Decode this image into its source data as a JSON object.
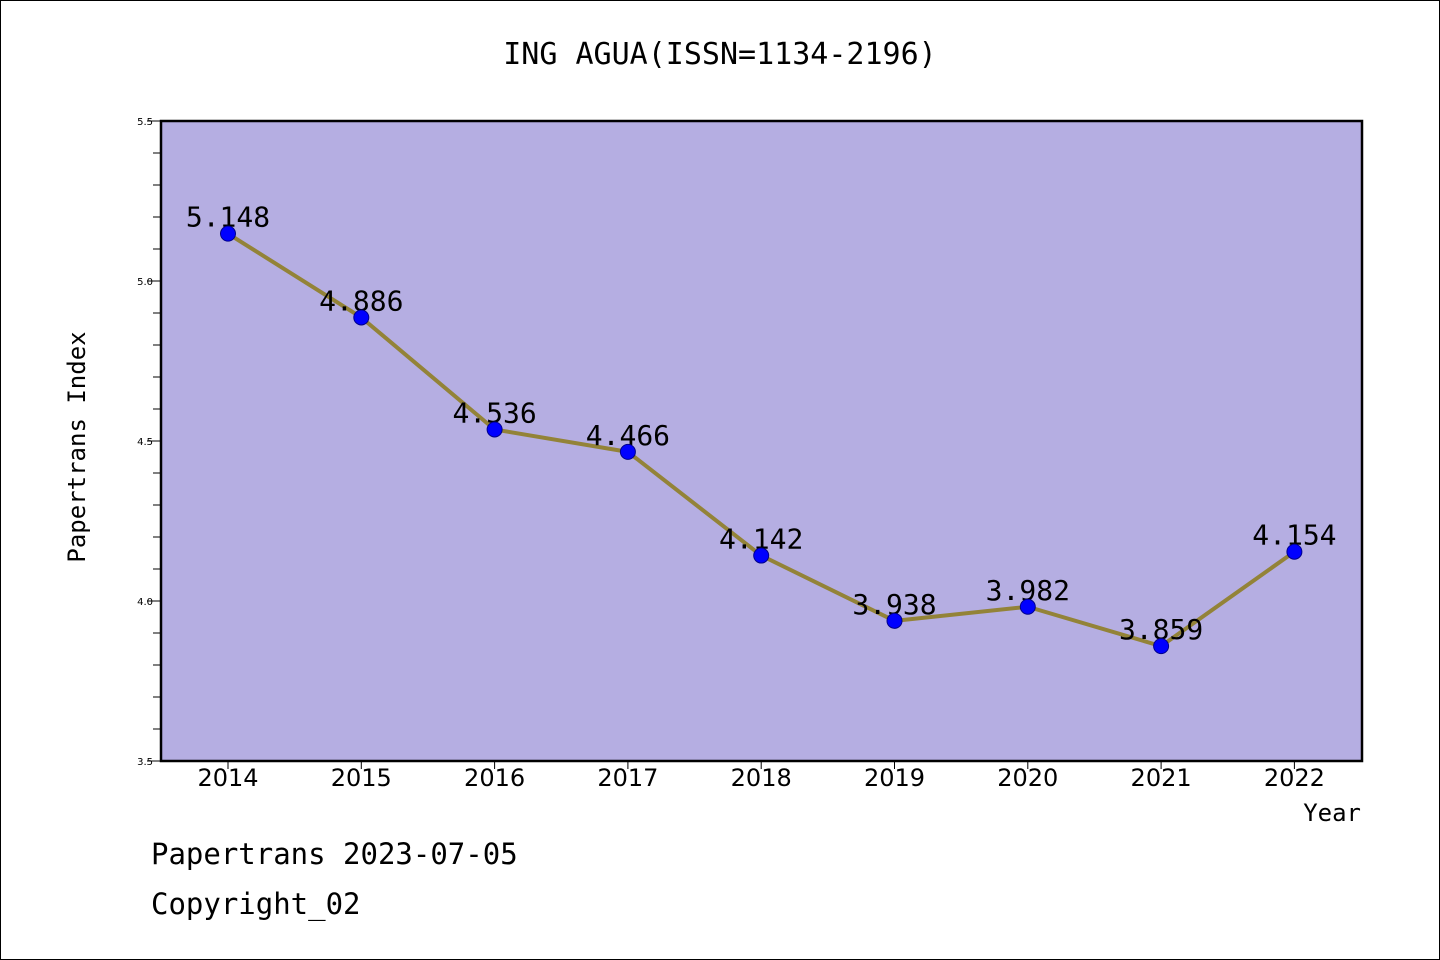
{
  "title": "ING AGUA(ISSN=1134-2196)",
  "footer": {
    "line1": "Papertrans 2023-07-05",
    "line2": "Copyright_02"
  },
  "colors": {
    "plot_background": "#b5aee2",
    "line": "#938338",
    "marker": "#0000ff"
  },
  "chart_data": {
    "type": "line",
    "title": "ING AGUA(ISSN=1134-2196)",
    "xlabel": "Year",
    "ylabel": "Papertrans Index",
    "x": [
      "2014",
      "2015",
      "2016",
      "2017",
      "2018",
      "2019",
      "2020",
      "2021",
      "2022"
    ],
    "values": [
      5.148,
      4.886,
      4.536,
      4.466,
      4.142,
      3.938,
      3.982,
      3.859,
      4.154
    ],
    "labels": [
      "5.148",
      "4.886",
      "4.536",
      "4.466",
      "4.142",
      "3.938",
      "3.982",
      "3.859",
      "4.154"
    ],
    "ylim": [
      3.5,
      5.5
    ],
    "yticks": [
      "3.5",
      "4.0",
      "4.5",
      "5.0",
      "5.5"
    ],
    "grid": false,
    "legend": "none"
  }
}
